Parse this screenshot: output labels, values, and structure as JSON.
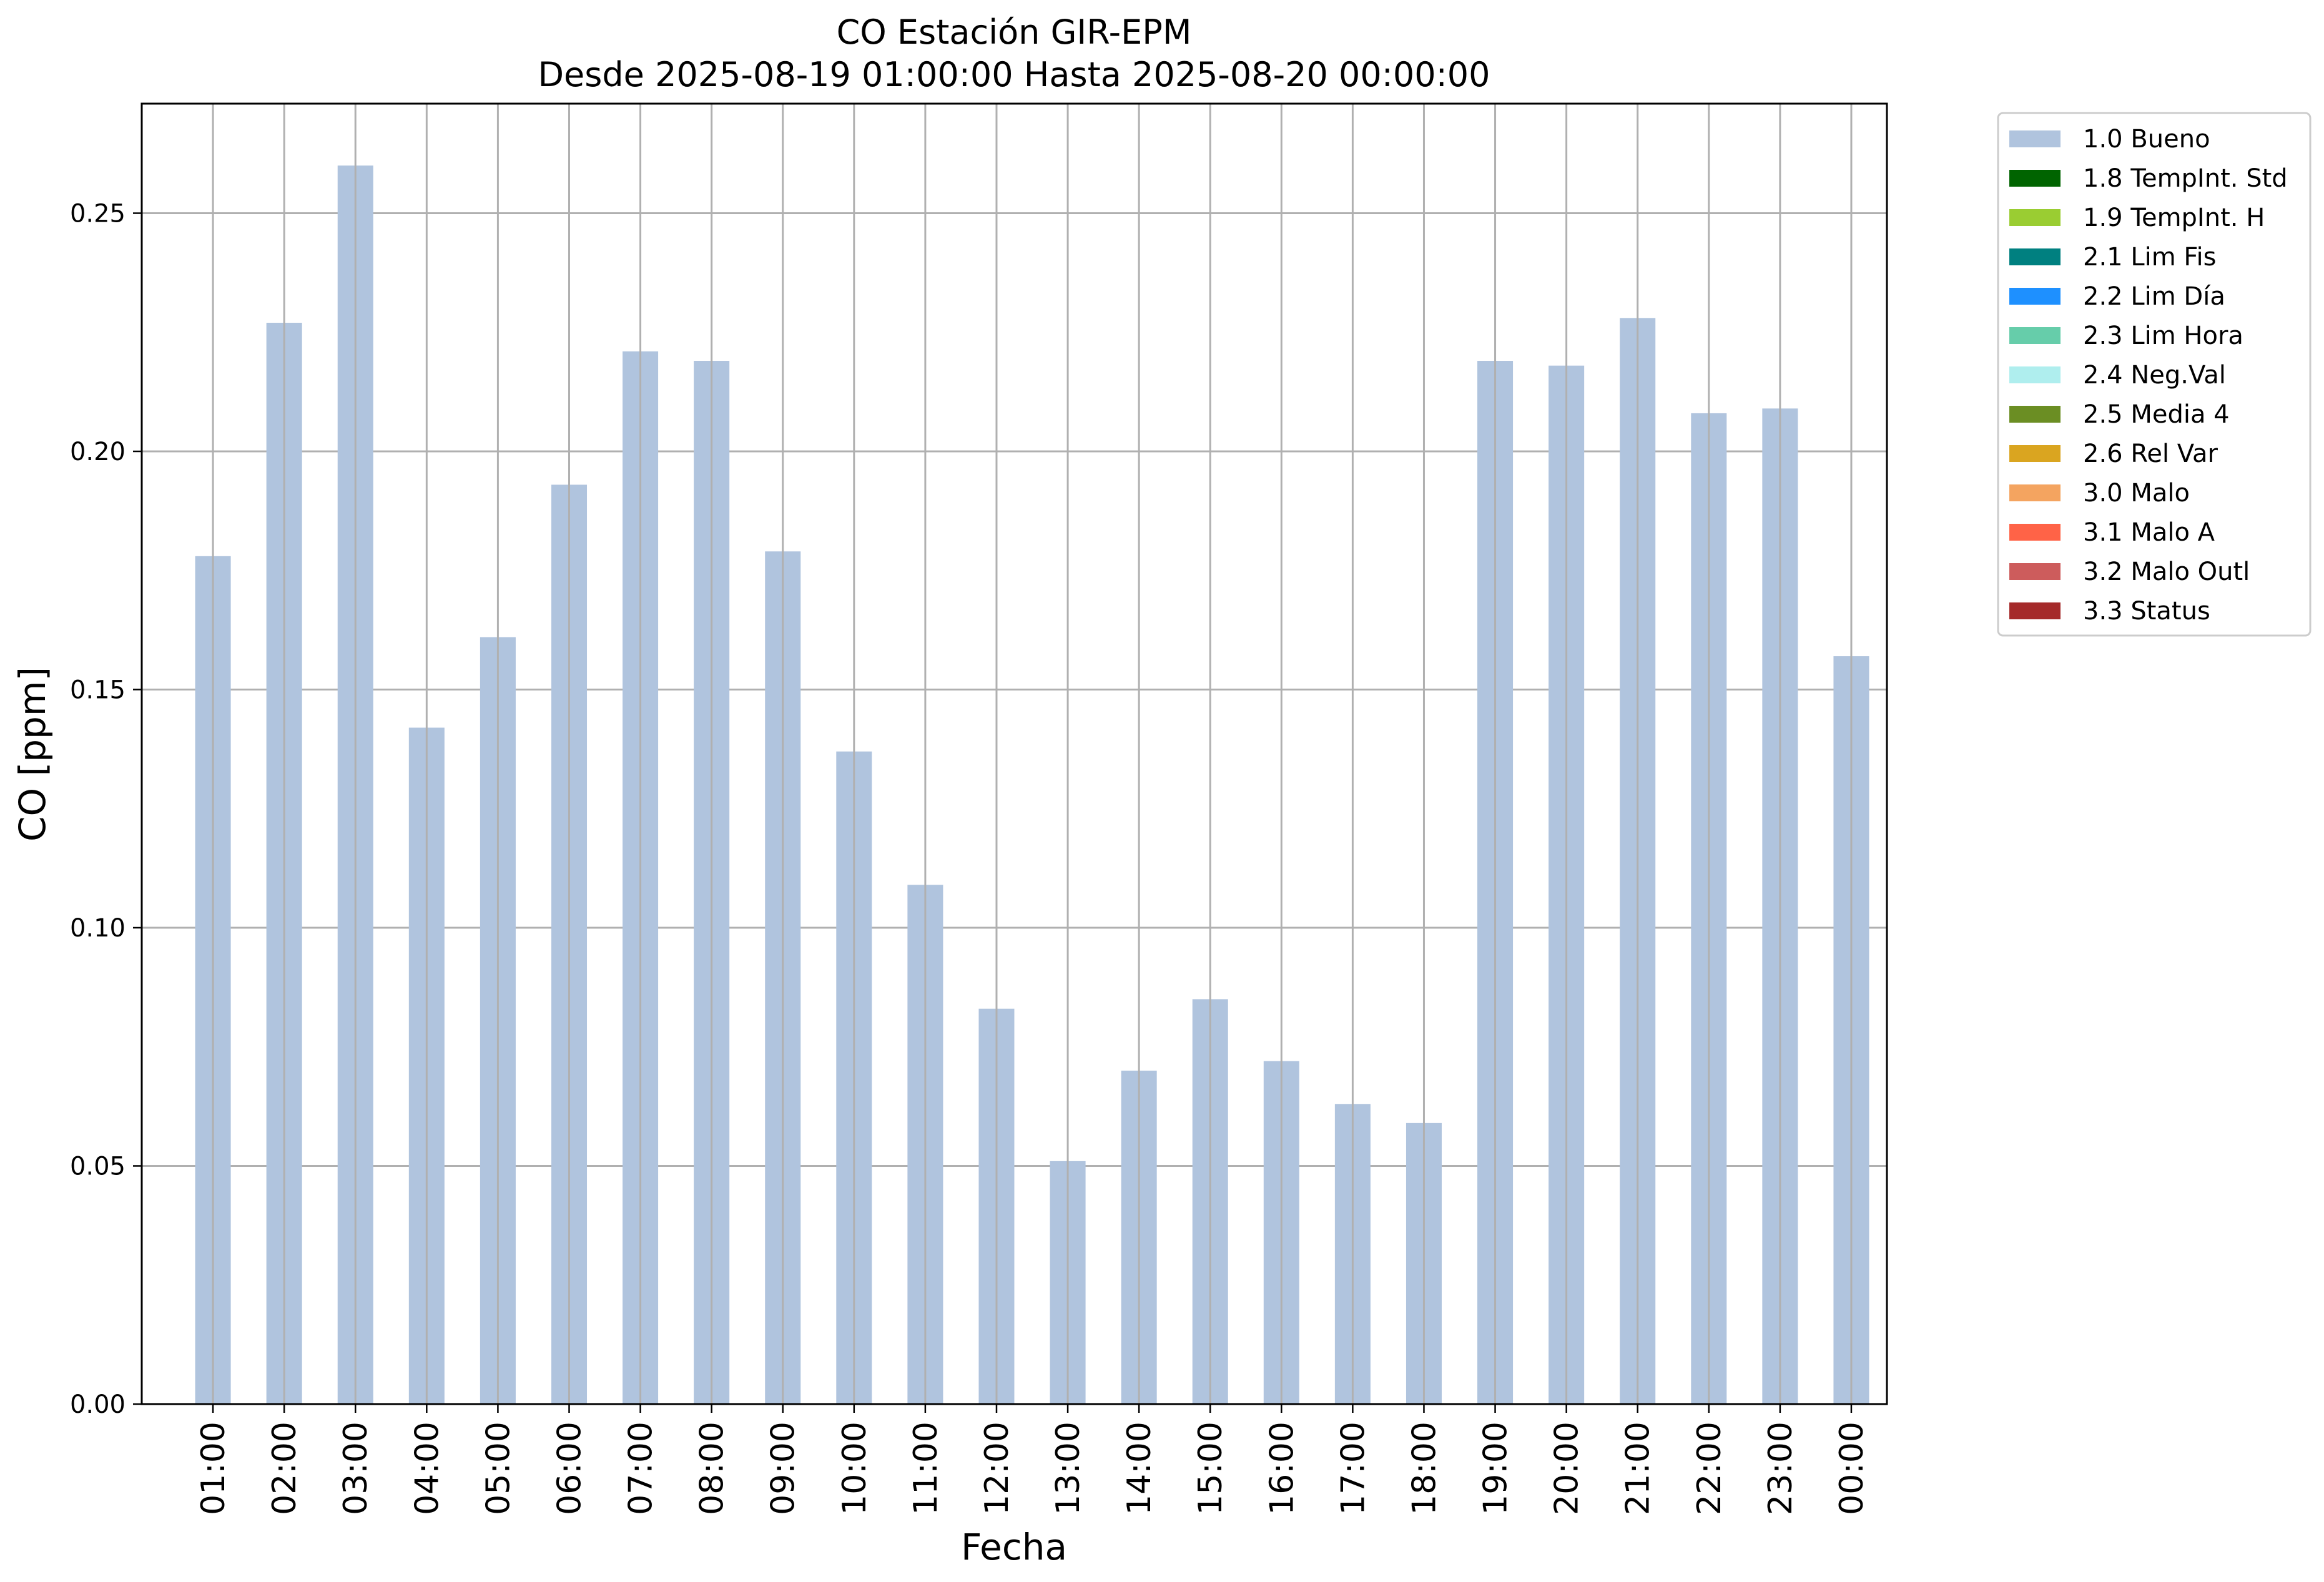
{
  "chart_data": {
    "type": "bar",
    "title": "CO Estación GIR-EPM",
    "subtitle": "Desde 2025-08-19 01:00:00 Hasta 2025-08-20 00:00:00",
    "xlabel": "Fecha",
    "ylabel": "CO [ppm]",
    "ylim": [
      0,
      0.273
    ],
    "yticks": [
      0.0,
      0.05,
      0.1,
      0.15,
      0.2,
      0.25
    ],
    "ytick_labels": [
      "0.00",
      "0.05",
      "0.10",
      "0.15",
      "0.20",
      "0.25"
    ],
    "grid": true,
    "legend_position": "outside-right-top",
    "categories": [
      "01:00",
      "02:00",
      "03:00",
      "04:00",
      "05:00",
      "06:00",
      "07:00",
      "08:00",
      "09:00",
      "10:00",
      "11:00",
      "12:00",
      "13:00",
      "14:00",
      "15:00",
      "16:00",
      "17:00",
      "18:00",
      "19:00",
      "20:00",
      "21:00",
      "22:00",
      "23:00",
      "00:00"
    ],
    "series": [
      {
        "name": "1.0 Bueno",
        "color": "#b0c4de",
        "values": [
          0.178,
          0.227,
          0.26,
          0.142,
          0.161,
          0.193,
          0.221,
          0.219,
          0.179,
          0.137,
          0.109,
          0.083,
          0.051,
          0.07,
          0.085,
          0.072,
          0.063,
          0.059,
          0.219,
          0.218,
          0.228,
          0.208,
          0.209,
          0.157
        ]
      }
    ],
    "legend": [
      {
        "label": "1.0 Bueno",
        "color": "#b0c4de"
      },
      {
        "label": "1.8 TempInt. Std",
        "color": "#006400"
      },
      {
        "label": "1.9 TempInt. H",
        "color": "#9acd32"
      },
      {
        "label": "2.1 Lim Fis",
        "color": "#008080"
      },
      {
        "label": "2.2 Lim Día",
        "color": "#1e90ff"
      },
      {
        "label": "2.3 Lim Hora",
        "color": "#66cdaa"
      },
      {
        "label": "2.4 Neg.Val",
        "color": "#afeeee"
      },
      {
        "label": "2.5 Media 4",
        "color": "#6b8e23"
      },
      {
        "label": "2.6 Rel Var",
        "color": "#daa520"
      },
      {
        "label": "3.0 Malo",
        "color": "#f4a460"
      },
      {
        "label": "3.1 Malo A",
        "color": "#ff6347"
      },
      {
        "label": "3.2 Malo Outl",
        "color": "#cd5c5c"
      },
      {
        "label": "3.3 Status",
        "color": "#a52a2a"
      }
    ]
  }
}
